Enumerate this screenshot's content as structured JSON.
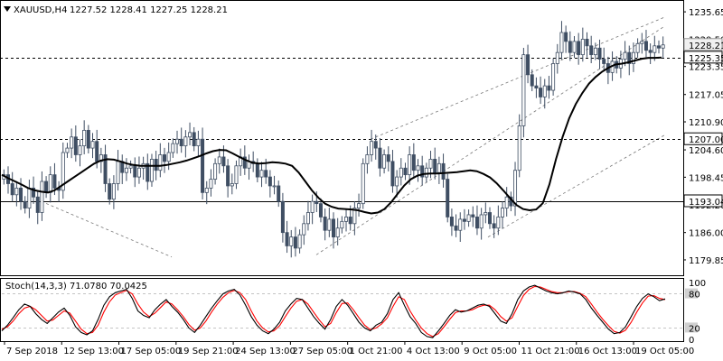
{
  "header": {
    "symbol": "XAUUSD,H4",
    "ohlc": "1227.52 1228.41 1227.25 1228.21"
  },
  "chart_data": [
    {
      "type": "candlestick",
      "name": "price",
      "ylim": [
        1177.0,
        1237.5
      ],
      "y_ticks": [
        "1235.65",
        "1229.50",
        "1223.35",
        "1217.05",
        "1210.90",
        "1204.60",
        "1198.45",
        "1192.20",
        "1186.00",
        "1179.85"
      ],
      "y_tick_values": [
        1235.65,
        1229.5,
        1223.35,
        1217.05,
        1210.9,
        1204.6,
        1198.45,
        1192.2,
        1186.0,
        1179.85
      ],
      "current_price": "1228.21",
      "current_price_value": 1228.21,
      "levels": [
        {
          "label": "1225.35",
          "value": 1225.35,
          "style": "dashed"
        },
        {
          "label": "1207.00",
          "value": 1207.0,
          "style": "dashed"
        },
        {
          "label": "1193.04",
          "value": 1193.04,
          "style": "solid"
        }
      ],
      "closes": [
        1199.0,
        1197.0,
        1194.5,
        1196.0,
        1193.0,
        1191.5,
        1196.0,
        1194.0,
        1190.5,
        1197.5,
        1195.0,
        1199.0,
        1196.0,
        1195.5,
        1204.0,
        1205.0,
        1207.5,
        1203.5,
        1205.5,
        1209.0,
        1205.0,
        1206.5,
        1202.0,
        1203.5,
        1197.0,
        1193.5,
        1197.0,
        1202.0,
        1199.5,
        1200.5,
        1201.0,
        1198.5,
        1200.5,
        1201.5,
        1197.5,
        1202.5,
        1200.0,
        1203.5,
        1202.0,
        1204.0,
        1206.0,
        1207.0,
        1205.5,
        1207.5,
        1208.5,
        1205.5,
        1207.0,
        1195.0,
        1196.0,
        1198.0,
        1201.5,
        1203.0,
        1201.0,
        1196.5,
        1197.0,
        1201.0,
        1203.0,
        1200.5,
        1202.0,
        1201.5,
        1198.5,
        1200.0,
        1198.5,
        1196.5,
        1196.5,
        1193.0,
        1186.0,
        1183.0,
        1185.0,
        1182.5,
        1185.5,
        1188.0,
        1190.5,
        1193.0,
        1192.5,
        1189.5,
        1186.5,
        1189.0,
        1185.0,
        1187.0,
        1188.5,
        1189.5,
        1188.0,
        1191.5,
        1192.5,
        1201.5,
        1203.5,
        1206.5,
        1205.0,
        1200.5,
        1203.5,
        1202.0,
        1196.5,
        1198.5,
        1200.5,
        1199.0,
        1203.5,
        1200.0,
        1201.0,
        1198.5,
        1200.5,
        1202.5,
        1199.5,
        1201.5,
        1198.0,
        1189.5,
        1187.5,
        1186.5,
        1189.0,
        1188.5,
        1190.0,
        1189.5,
        1187.0,
        1190.0,
        1190.5,
        1188.0,
        1187.0,
        1189.5,
        1191.5,
        1194.0,
        1192.0,
        1200.0,
        1210.0,
        1226.0,
        1221.5,
        1219.0,
        1218.5,
        1216.5,
        1219.0,
        1218.0,
        1224.0,
        1226.5,
        1231.0,
        1229.0,
        1226.5,
        1229.0,
        1226.0,
        1229.5,
        1228.0,
        1226.0,
        1227.5,
        1225.0,
        1224.0,
        1222.0,
        1224.5,
        1223.0,
        1225.0,
        1226.5,
        1224.0,
        1226.5,
        1228.5,
        1229.0,
        1227.0,
        1226.5,
        1228.0,
        1227.5,
        1228.21
      ],
      "moving_average": [
        1199.0,
        1198.2,
        1197.5,
        1196.8,
        1196.0,
        1195.5,
        1195.2,
        1195.0,
        1195.5,
        1196.5,
        1197.5,
        1198.5,
        1199.5,
        1200.5,
        1201.5,
        1202.2,
        1202.5,
        1202.4,
        1202.0,
        1201.5,
        1201.2,
        1201.0,
        1201.0,
        1201.0,
        1201.0,
        1201.2,
        1201.5,
        1201.8,
        1202.2,
        1202.7,
        1203.2,
        1203.8,
        1204.3,
        1204.6,
        1204.5,
        1203.8,
        1203.0,
        1202.3,
        1201.7,
        1201.5,
        1201.6,
        1201.8,
        1201.7,
        1201.5,
        1201.0,
        1199.5,
        1197.5,
        1195.5,
        1193.8,
        1192.5,
        1191.8,
        1191.4,
        1191.3,
        1191.2,
        1191.0,
        1190.6,
        1190.3,
        1190.5,
        1191.3,
        1192.8,
        1194.7,
        1196.6,
        1198.0,
        1198.8,
        1199.2,
        1199.3,
        1199.3,
        1199.4,
        1199.5,
        1199.6,
        1199.8,
        1200.0,
        1199.8,
        1199.2,
        1198.4,
        1197.1,
        1195.5,
        1193.8,
        1192.2,
        1191.3,
        1191.0,
        1191.2,
        1192.6,
        1196.8,
        1202.5,
        1207.5,
        1211.7,
        1214.9,
        1217.4,
        1219.5,
        1221.0,
        1222.2,
        1223.1,
        1223.8,
        1224.0,
        1224.3,
        1224.7,
        1225.1,
        1225.3,
        1225.3,
        1225.35
      ],
      "moving_average_color": "#000000"
    },
    {
      "type": "line",
      "name": "Stoch(14,3,3)",
      "label": "Stoch(14,3,3) 71.0780 70.0425",
      "ylim": [
        0,
        100
      ],
      "y_ticks": [
        "100",
        "80",
        "20",
        "0"
      ],
      "y_tick_values": [
        100,
        80,
        20,
        0
      ],
      "levels": [
        80,
        20
      ],
      "main": [
        15,
        25,
        38,
        52,
        62,
        58,
        45,
        35,
        28,
        38,
        48,
        55,
        42,
        22,
        12,
        8,
        15,
        35,
        60,
        75,
        82,
        85,
        88,
        72,
        50,
        42,
        38,
        52,
        62,
        70,
        58,
        48,
        35,
        20,
        12,
        25,
        40,
        55,
        68,
        80,
        85,
        88,
        78,
        60,
        40,
        25,
        15,
        10,
        18,
        30,
        50,
        62,
        72,
        70,
        55,
        40,
        28,
        18,
        35,
        58,
        70,
        60,
        45,
        30,
        20,
        15,
        25,
        30,
        45,
        70,
        82,
        60,
        40,
        28,
        12,
        5,
        3,
        15,
        28,
        42,
        52,
        48,
        50,
        55,
        60,
        62,
        58,
        45,
        32,
        28,
        45,
        70,
        85,
        92,
        95,
        90,
        85,
        82,
        80,
        82,
        85,
        83,
        80,
        70,
        55,
        42,
        30,
        18,
        10,
        12,
        22,
        40,
        58,
        72,
        80,
        75,
        68,
        71.078
      ],
      "signal": [
        18,
        22,
        32,
        45,
        55,
        58,
        52,
        42,
        32,
        34,
        42,
        50,
        46,
        32,
        18,
        10,
        12,
        25,
        48,
        66,
        78,
        82,
        86,
        80,
        62,
        48,
        40,
        46,
        56,
        66,
        62,
        52,
        40,
        26,
        16,
        20,
        32,
        48,
        62,
        74,
        82,
        86,
        82,
        70,
        50,
        32,
        20,
        13,
        15,
        24,
        40,
        55,
        67,
        70,
        62,
        48,
        34,
        22,
        28,
        47,
        63,
        64,
        52,
        38,
        25,
        17,
        20,
        27,
        38,
        58,
        75,
        70,
        50,
        34,
        20,
        10,
        5,
        10,
        22,
        35,
        47,
        50,
        50,
        52,
        57,
        60,
        60,
        52,
        40,
        32,
        38,
        58,
        77,
        88,
        93,
        92,
        88,
        84,
        82,
        82,
        84,
        84,
        81,
        75,
        62,
        48,
        35,
        24,
        14,
        11,
        16,
        30,
        48,
        64,
        76,
        77,
        72,
        70.0425
      ],
      "main_color": "#000000",
      "signal_color": "#ff0000"
    }
  ],
  "x_axis": {
    "labels": [
      "7 Sep 2018",
      "12 Sep 13:00",
      "17 Sep 05:00",
      "19 Sep 21:00",
      "24 Sep 13:00",
      "27 Sep 05:00",
      "1 Oct 21:00",
      "4 Oct 13:00",
      "9 Oct 05:00",
      "11 Oct 21:00",
      "16 Oct 13:00",
      "19 Oct 05:00"
    ]
  },
  "colors": {
    "candle_bull": "#ffffff",
    "candle_bear": "#000000",
    "wick_bear_fill": "#3f4e63",
    "channel": "#777777",
    "grid_frame": "#000000",
    "current_price_bg": "#f0f0f0"
  }
}
